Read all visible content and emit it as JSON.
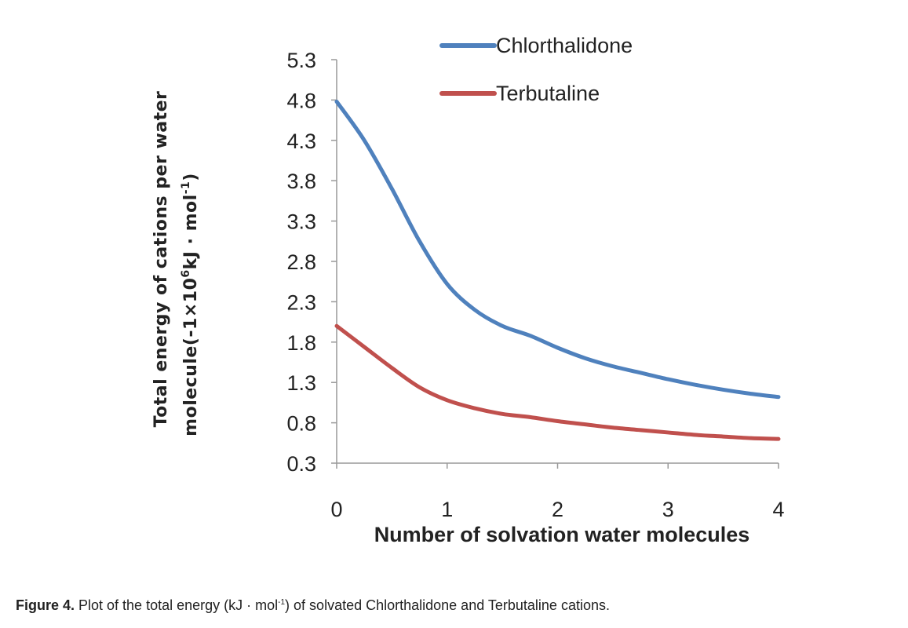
{
  "chart_data": {
    "type": "line",
    "xlabel": "Number of solvation water molecules",
    "ylabel": {
      "line1": "Total energy of  cations per water",
      "line2_prefix": "molecule(-1×10",
      "line2_exp": "6",
      "line2_mid": "kJ · mol",
      "line2_exp2": "-1",
      "line2_suffix": ")"
    },
    "x_ticks": [
      "0",
      "1",
      "2",
      "3",
      "4"
    ],
    "y_ticks": [
      "0.3",
      "0.8",
      "1.3",
      "1.8",
      "2.3",
      "2.8",
      "3.3",
      "3.8",
      "4.3",
      "4.8",
      "5.3"
    ],
    "xlim": [
      0,
      4
    ],
    "ylim": [
      0.3,
      5.3
    ],
    "grid": false,
    "legend_position": "top",
    "series": [
      {
        "name": "Chlorthalidone",
        "color": "#4f81bd",
        "x": [
          0,
          0.25,
          0.5,
          0.75,
          1,
          1.25,
          1.5,
          1.75,
          2,
          2.25,
          2.5,
          2.75,
          3,
          3.25,
          3.5,
          3.75,
          4
        ],
        "y": [
          4.78,
          4.3,
          3.7,
          3.05,
          2.52,
          2.2,
          2.0,
          1.88,
          1.73,
          1.6,
          1.5,
          1.42,
          1.34,
          1.27,
          1.21,
          1.16,
          1.12
        ]
      },
      {
        "name": "Terbutaline",
        "color": "#c0504d",
        "x": [
          0,
          0.25,
          0.5,
          0.75,
          1,
          1.25,
          1.5,
          1.75,
          2,
          2.25,
          2.5,
          2.75,
          3,
          3.25,
          3.5,
          3.75,
          4
        ],
        "y": [
          2.0,
          1.74,
          1.48,
          1.24,
          1.08,
          0.98,
          0.91,
          0.87,
          0.82,
          0.78,
          0.74,
          0.71,
          0.68,
          0.65,
          0.63,
          0.61,
          0.6
        ]
      }
    ]
  },
  "caption": {
    "label": "Figure 4.",
    "text_before": " Plot of the total energy (kJ · mol",
    "sup": "-1",
    "text_after": ") of solvated Chlorthalidone and Terbutaline cations."
  }
}
